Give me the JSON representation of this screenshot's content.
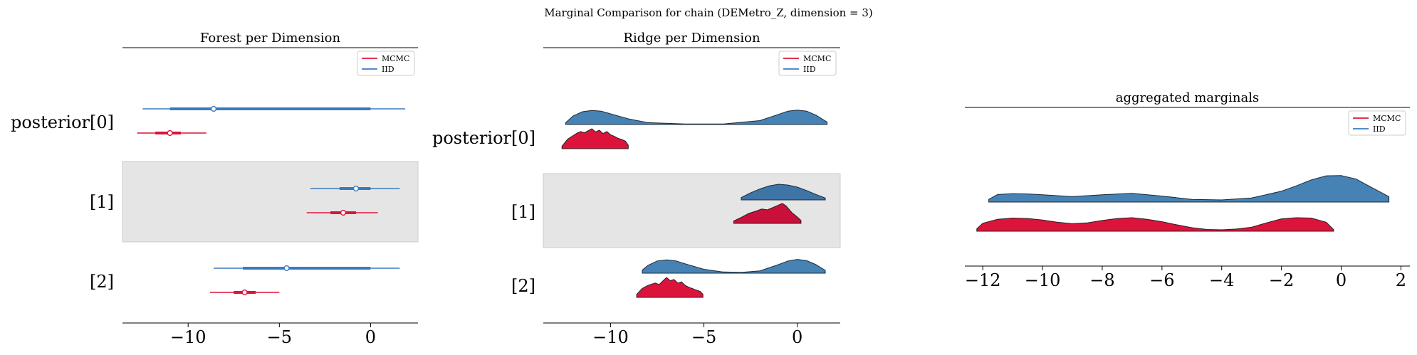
{
  "figure": {
    "suptitle": "Marginal Comparison for chain (DEMetro_Z, dimension = 3)"
  },
  "colors": {
    "mcmc": "#dc143c",
    "iid": "#3a7bbf",
    "ridge_iid": "#4682b4",
    "band": "#e5e5e5"
  },
  "legend": {
    "mcmc_label": "MCMC",
    "iid_label": "IID"
  },
  "chart_data": [
    {
      "type": "forest",
      "title": "Forest per Dimension",
      "xlim": [
        -13.6,
        2.6
      ],
      "xticks": [
        -10,
        -5,
        0
      ],
      "xtick_labels": [
        "−10",
        "−5",
        "0"
      ],
      "legend_placement": "top-right",
      "rows": [
        {
          "label": "posterior[0]",
          "shaded": false,
          "series": [
            {
              "name": "IID",
              "hdi94": [
                -12.5,
                1.9
              ],
              "hdi50": [
                -11.0,
                0.0
              ],
              "median": -8.6
            },
            {
              "name": "MCMC",
              "hdi94": [
                -12.8,
                -9.0
              ],
              "hdi50": [
                -11.8,
                -10.4
              ],
              "median": -11.0
            }
          ]
        },
        {
          "label": "[1]",
          "shaded": true,
          "series": [
            {
              "name": "IID",
              "hdi94": [
                -3.3,
                1.6
              ],
              "hdi50": [
                -1.7,
                0.0
              ],
              "median": -0.8
            },
            {
              "name": "MCMC",
              "hdi94": [
                -3.5,
                0.4
              ],
              "hdi50": [
                -2.2,
                -0.8
              ],
              "median": -1.5
            }
          ]
        },
        {
          "label": "[2]",
          "shaded": false,
          "series": [
            {
              "name": "IID",
              "hdi94": [
                -8.6,
                1.6
              ],
              "hdi50": [
                -7.0,
                0.0
              ],
              "median": -4.6
            },
            {
              "name": "MCMC",
              "hdi94": [
                -8.8,
                -5.0
              ],
              "hdi50": [
                -7.5,
                -6.3
              ],
              "median": -6.9
            }
          ]
        }
      ]
    },
    {
      "type": "ridge",
      "title": "Ridge per Dimension",
      "xlim": [
        -13.6,
        2.3
      ],
      "xticks": [
        -10,
        -5,
        0
      ],
      "xtick_labels": [
        "−10",
        "−5",
        "0"
      ],
      "legend_placement": "top-right",
      "rows": [
        {
          "label": "posterior[0]",
          "shaded": false,
          "iid": {
            "x": [
              -12.4,
              -12.0,
              -11.5,
              -11.0,
              -10.5,
              -10.0,
              -9.0,
              -8.0,
              -6.0,
              -4.0,
              -2.0,
              -1.0,
              -0.5,
              0.0,
              0.5,
              1.0,
              1.6
            ],
            "y": [
              0.12,
              0.55,
              0.82,
              0.9,
              0.85,
              0.68,
              0.35,
              0.12,
              0.03,
              0.03,
              0.25,
              0.65,
              0.85,
              0.92,
              0.85,
              0.6,
              0.15
            ]
          },
          "mcmc": {
            "x": [
              -12.6,
              -12.3,
              -12.0,
              -11.8,
              -11.6,
              -11.4,
              -11.2,
              -11.0,
              -10.8,
              -10.6,
              -10.4,
              -10.2,
              -10.0,
              -9.8,
              -9.6,
              -9.4,
              -9.2,
              -9.05
            ],
            "y": [
              0.12,
              0.48,
              0.66,
              0.78,
              0.86,
              0.8,
              0.9,
              1.0,
              0.84,
              0.93,
              0.76,
              0.86,
              0.7,
              0.62,
              0.52,
              0.46,
              0.38,
              0.18
            ]
          }
        },
        {
          "label": "[1]",
          "shaded": true,
          "iid": {
            "x": [
              -3.0,
              -2.5,
              -2.0,
              -1.5,
              -1.0,
              -0.5,
              0.0,
              0.5,
              1.0,
              1.5
            ],
            "y": [
              0.15,
              0.45,
              0.7,
              0.9,
              1.0,
              0.95,
              0.82,
              0.6,
              0.35,
              0.12
            ]
          },
          "mcmc": {
            "x": [
              -3.4,
              -3.0,
              -2.6,
              -2.2,
              -1.9,
              -1.6,
              -1.3,
              -1.0,
              -0.8,
              -0.6,
              -0.3,
              0.0,
              0.2
            ],
            "y": [
              0.12,
              0.3,
              0.5,
              0.62,
              0.72,
              0.68,
              0.8,
              0.92,
              1.0,
              0.88,
              0.55,
              0.32,
              0.15
            ]
          }
        },
        {
          "label": "[2]",
          "shaded": false,
          "iid": {
            "x": [
              -8.3,
              -8.0,
              -7.5,
              -7.0,
              -6.5,
              -6.0,
              -5.0,
              -4.0,
              -3.0,
              -2.0,
              -1.0,
              -0.5,
              0.0,
              0.5,
              1.0,
              1.5
            ],
            "y": [
              0.2,
              0.5,
              0.78,
              0.85,
              0.78,
              0.6,
              0.25,
              0.08,
              0.05,
              0.15,
              0.55,
              0.78,
              0.88,
              0.8,
              0.55,
              0.18
            ]
          },
          "mcmc": {
            "x": [
              -8.6,
              -8.3,
              -8.0,
              -7.8,
              -7.6,
              -7.4,
              -7.2,
              -7.0,
              -6.8,
              -6.6,
              -6.4,
              -6.2,
              -6.0,
              -5.8,
              -5.6,
              -5.4,
              -5.2,
              -5.05
            ],
            "y": [
              0.15,
              0.45,
              0.6,
              0.66,
              0.72,
              0.64,
              0.82,
              1.0,
              0.84,
              0.9,
              0.72,
              0.78,
              0.6,
              0.5,
              0.44,
              0.36,
              0.3,
              0.15
            ]
          }
        }
      ]
    },
    {
      "type": "area",
      "title": "aggregated marginals",
      "xlim": [
        -12.6,
        2.3
      ],
      "xticks": [
        -12,
        -10,
        -8,
        -6,
        -4,
        -2,
        0,
        2
      ],
      "xtick_labels": [
        "−12",
        "−10",
        "−8",
        "−6",
        "−4",
        "−2",
        "0",
        "2"
      ],
      "legend_placement": "top-right",
      "series": [
        {
          "name": "IID",
          "x": [
            -11.8,
            -11.5,
            -11.0,
            -10.5,
            -10.0,
            -9.0,
            -8.0,
            -7.0,
            -6.0,
            -5.0,
            -4.0,
            -3.0,
            -2.0,
            -1.5,
            -1.0,
            -0.5,
            0.0,
            0.5,
            1.0,
            1.6
          ],
          "y": [
            0.1,
            0.28,
            0.31,
            0.3,
            0.27,
            0.2,
            0.27,
            0.32,
            0.22,
            0.1,
            0.08,
            0.15,
            0.4,
            0.6,
            0.82,
            0.97,
            0.98,
            0.85,
            0.55,
            0.2
          ]
        },
        {
          "name": "MCMC",
          "x": [
            -12.2,
            -12.0,
            -11.5,
            -11.0,
            -10.5,
            -10.0,
            -9.5,
            -9.0,
            -8.5,
            -8.0,
            -7.5,
            -7.0,
            -6.5,
            -6.0,
            -5.5,
            -5.0,
            -4.5,
            -4.0,
            -3.5,
            -3.0,
            -2.5,
            -2.0,
            -1.5,
            -1.0,
            -0.5,
            -0.25
          ],
          "y": [
            0.12,
            0.4,
            0.6,
            0.66,
            0.64,
            0.56,
            0.45,
            0.38,
            0.42,
            0.54,
            0.64,
            0.68,
            0.6,
            0.48,
            0.32,
            0.18,
            0.09,
            0.07,
            0.11,
            0.2,
            0.42,
            0.62,
            0.68,
            0.66,
            0.45,
            0.08
          ]
        }
      ]
    }
  ]
}
